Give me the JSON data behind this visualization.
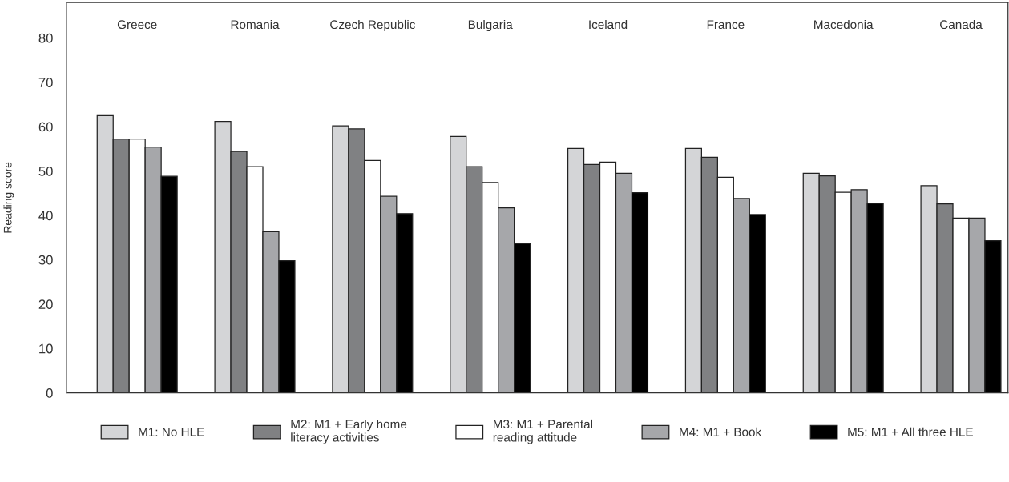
{
  "chart_data": {
    "type": "bar",
    "ylabel": "Reading score",
    "categories": [
      "Greece",
      "Romania",
      "Czech Republic",
      "Bulgaria",
      "Iceland",
      "France",
      "Macedonia",
      "Canada"
    ],
    "series": [
      {
        "name": "M1: No HLE",
        "color": "#d4d5d7",
        "values": [
          62.5,
          61.2,
          60.2,
          57.8,
          55.1,
          55.1,
          49.5,
          46.7
        ]
      },
      {
        "name": "M2: M1 + Early home\nliteracy activities",
        "color": "#808183",
        "values": [
          57.2,
          54.4,
          59.5,
          51.0,
          51.5,
          53.1,
          48.9,
          42.6
        ]
      },
      {
        "name": "M3: M1 + Parental\nreading attitude",
        "color": "#ffffff",
        "values": [
          57.2,
          51.0,
          52.4,
          47.4,
          52.0,
          48.6,
          45.2,
          39.4
        ]
      },
      {
        "name": "M4: M1 + Book",
        "color": "#a6a7aa",
        "values": [
          55.4,
          36.3,
          44.3,
          41.7,
          49.5,
          43.8,
          45.8,
          39.4
        ]
      },
      {
        "name": "M5: M1 + All three HLE",
        "color": "#000000",
        "values": [
          48.8,
          29.8,
          40.4,
          33.6,
          45.1,
          40.2,
          42.7,
          34.3
        ]
      }
    ],
    "ylim": [
      0,
      88
    ],
    "yticks": [
      0,
      10,
      20,
      30,
      40,
      50,
      60,
      70,
      80
    ],
    "grid": false,
    "legend": "bottom"
  }
}
